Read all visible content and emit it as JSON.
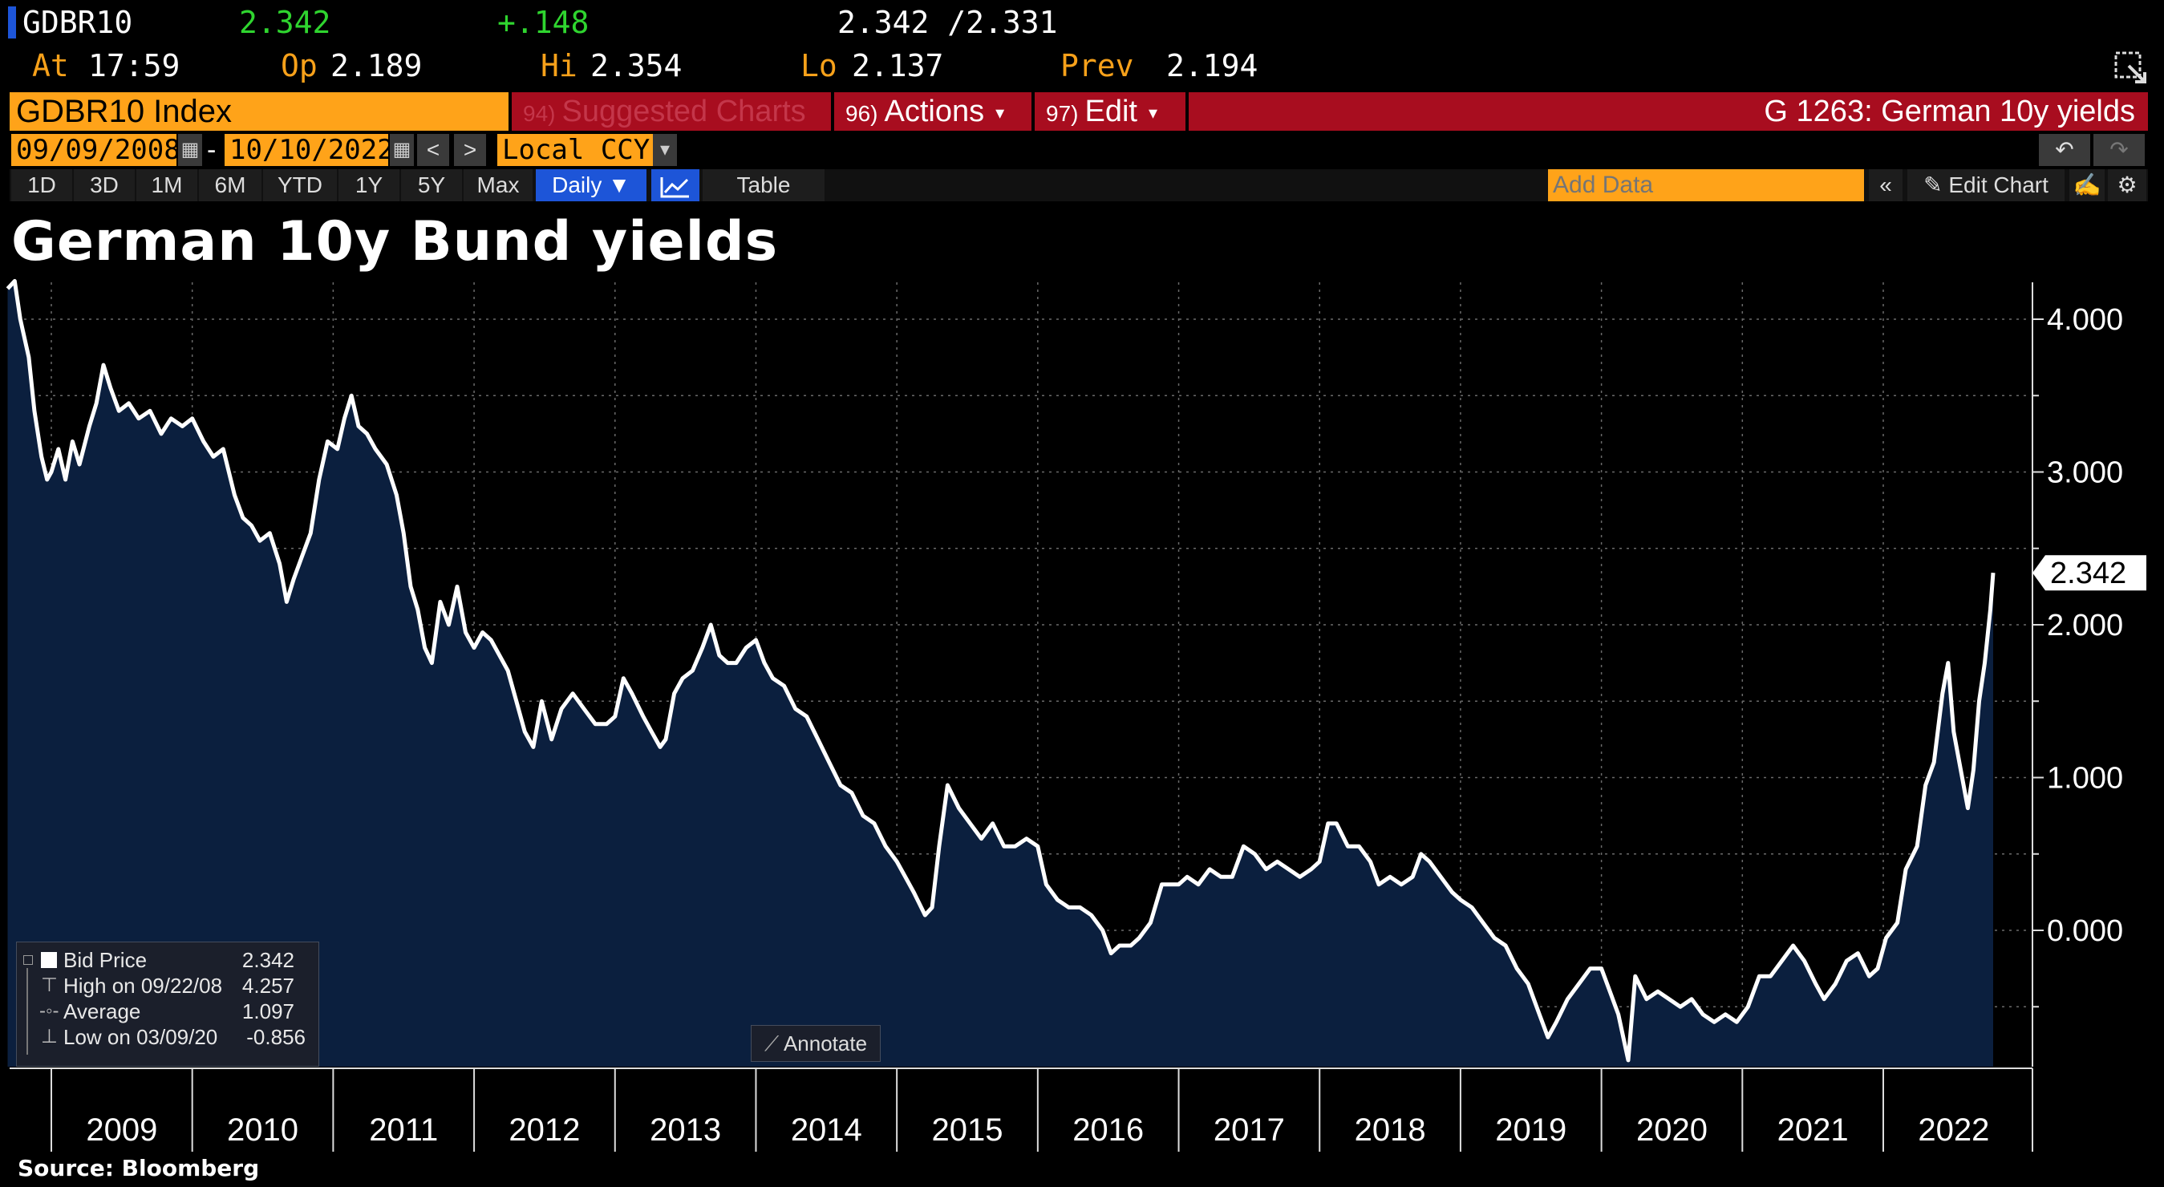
{
  "quote": {
    "ticker": "GDBR10",
    "last": "2.342",
    "change": "+.148",
    "bid_ask": "2.342 /2.331",
    "at_label": "At",
    "at_time": "17:59",
    "op_label": "Op",
    "op_value": "2.189",
    "hi_label": "Hi",
    "hi_value": "2.354",
    "lo_label": "Lo",
    "lo_value": "2.137",
    "prev_label": "Prev",
    "prev_value": "2.194"
  },
  "titlebar": {
    "index_name": "GDBR10 Index",
    "suggested_num": "94)",
    "suggested_label": "Suggested Charts",
    "actions_num": "96)",
    "actions_label": "Actions",
    "edit_num": "97)",
    "edit_label": "Edit",
    "chart_code": "G 1263: German 10y yields"
  },
  "controls": {
    "start_date": "09/09/2008",
    "dash": "-",
    "end_date": "10/10/2022",
    "prev_glyph": "<",
    "next_glyph": ">",
    "currency": "Local CCY",
    "ranges": [
      "1D",
      "3D",
      "1M",
      "6M",
      "YTD",
      "1Y",
      "5Y",
      "Max"
    ],
    "frequency": "Daily",
    "table_label": "Table",
    "add_data_placeholder": "Add Data",
    "edit_chart_label": "Edit Chart"
  },
  "legend": {
    "bid_label": "Bid Price",
    "bid_value": "2.342",
    "high_label": "High on 09/22/08",
    "high_value": "4.257",
    "avg_label": "Average",
    "avg_value": "1.097",
    "low_label": "Low on 03/09/20",
    "low_value": "-0.856"
  },
  "annotate_label": "Annotate",
  "source": "Source:  Bloomberg",
  "colors": {
    "orange": "#ffa319",
    "red": "#a80d1f",
    "green": "#2fd52f",
    "area_fill": "#0b1f3e",
    "line": "#ffffff"
  },
  "chart_data": {
    "type": "area",
    "title": "German 10y Bund yields",
    "xlabel": "",
    "ylabel": "",
    "x_ticks": [
      "2009",
      "2010",
      "2011",
      "2012",
      "2013",
      "2014",
      "2015",
      "2016",
      "2017",
      "2018",
      "2019",
      "2020",
      "2021",
      "2022"
    ],
    "y_ticks": [
      "4.000",
      "3.000",
      "2.000",
      "1.000",
      "0.000"
    ],
    "ylim": [
      -0.9,
      4.25
    ],
    "last_value_label": "2.342",
    "series": [
      {
        "name": "Bid Price",
        "points": [
          [
            2008.69,
            4.2
          ],
          [
            2008.74,
            4.25
          ],
          [
            2008.78,
            4.0
          ],
          [
            2008.84,
            3.75
          ],
          [
            2008.88,
            3.4
          ],
          [
            2008.93,
            3.1
          ],
          [
            2008.97,
            2.95
          ],
          [
            2009.0,
            3.0
          ],
          [
            2009.05,
            3.15
          ],
          [
            2009.1,
            2.95
          ],
          [
            2009.15,
            3.2
          ],
          [
            2009.2,
            3.05
          ],
          [
            2009.27,
            3.3
          ],
          [
            2009.32,
            3.45
          ],
          [
            2009.37,
            3.7
          ],
          [
            2009.42,
            3.55
          ],
          [
            2009.48,
            3.4
          ],
          [
            2009.55,
            3.45
          ],
          [
            2009.62,
            3.35
          ],
          [
            2009.7,
            3.4
          ],
          [
            2009.78,
            3.25
          ],
          [
            2009.85,
            3.35
          ],
          [
            2009.93,
            3.3
          ],
          [
            2010.0,
            3.35
          ],
          [
            2010.08,
            3.2
          ],
          [
            2010.15,
            3.1
          ],
          [
            2010.22,
            3.15
          ],
          [
            2010.3,
            2.85
          ],
          [
            2010.36,
            2.7
          ],
          [
            2010.42,
            2.65
          ],
          [
            2010.48,
            2.55
          ],
          [
            2010.55,
            2.6
          ],
          [
            2010.62,
            2.4
          ],
          [
            2010.67,
            2.15
          ],
          [
            2010.72,
            2.3
          ],
          [
            2010.78,
            2.45
          ],
          [
            2010.84,
            2.6
          ],
          [
            2010.9,
            2.95
          ],
          [
            2010.96,
            3.2
          ],
          [
            2011.03,
            3.15
          ],
          [
            2011.08,
            3.35
          ],
          [
            2011.13,
            3.5
          ],
          [
            2011.18,
            3.3
          ],
          [
            2011.24,
            3.25
          ],
          [
            2011.3,
            3.15
          ],
          [
            2011.38,
            3.05
          ],
          [
            2011.45,
            2.85
          ],
          [
            2011.5,
            2.6
          ],
          [
            2011.55,
            2.25
          ],
          [
            2011.6,
            2.1
          ],
          [
            2011.65,
            1.85
          ],
          [
            2011.7,
            1.75
          ],
          [
            2011.76,
            2.15
          ],
          [
            2011.82,
            2.0
          ],
          [
            2011.88,
            2.25
          ],
          [
            2011.94,
            1.95
          ],
          [
            2012.0,
            1.85
          ],
          [
            2012.06,
            1.95
          ],
          [
            2012.12,
            1.9
          ],
          [
            2012.18,
            1.8
          ],
          [
            2012.24,
            1.7
          ],
          [
            2012.3,
            1.5
          ],
          [
            2012.36,
            1.3
          ],
          [
            2012.42,
            1.2
          ],
          [
            2012.48,
            1.5
          ],
          [
            2012.55,
            1.25
          ],
          [
            2012.62,
            1.45
          ],
          [
            2012.7,
            1.55
          ],
          [
            2012.78,
            1.45
          ],
          [
            2012.86,
            1.35
          ],
          [
            2012.94,
            1.35
          ],
          [
            2013.0,
            1.4
          ],
          [
            2013.06,
            1.65
          ],
          [
            2013.12,
            1.55
          ],
          [
            2013.2,
            1.4
          ],
          [
            2013.26,
            1.3
          ],
          [
            2013.32,
            1.2
          ],
          [
            2013.36,
            1.25
          ],
          [
            2013.42,
            1.55
          ],
          [
            2013.48,
            1.65
          ],
          [
            2013.55,
            1.7
          ],
          [
            2013.62,
            1.85
          ],
          [
            2013.68,
            2.0
          ],
          [
            2013.74,
            1.8
          ],
          [
            2013.8,
            1.75
          ],
          [
            2013.86,
            1.75
          ],
          [
            2013.93,
            1.85
          ],
          [
            2014.0,
            1.9
          ],
          [
            2014.06,
            1.75
          ],
          [
            2014.12,
            1.65
          ],
          [
            2014.2,
            1.6
          ],
          [
            2014.28,
            1.45
          ],
          [
            2014.36,
            1.4
          ],
          [
            2014.44,
            1.25
          ],
          [
            2014.52,
            1.1
          ],
          [
            2014.6,
            0.95
          ],
          [
            2014.68,
            0.9
          ],
          [
            2014.76,
            0.75
          ],
          [
            2014.84,
            0.7
          ],
          [
            2014.92,
            0.55
          ],
          [
            2015.0,
            0.45
          ],
          [
            2015.06,
            0.35
          ],
          [
            2015.12,
            0.25
          ],
          [
            2015.2,
            0.1
          ],
          [
            2015.25,
            0.15
          ],
          [
            2015.3,
            0.55
          ],
          [
            2015.36,
            0.95
          ],
          [
            2015.44,
            0.8
          ],
          [
            2015.52,
            0.7
          ],
          [
            2015.6,
            0.6
          ],
          [
            2015.68,
            0.7
          ],
          [
            2015.76,
            0.55
          ],
          [
            2015.84,
            0.55
          ],
          [
            2015.92,
            0.6
          ],
          [
            2016.0,
            0.55
          ],
          [
            2016.06,
            0.3
          ],
          [
            2016.14,
            0.2
          ],
          [
            2016.22,
            0.15
          ],
          [
            2016.3,
            0.15
          ],
          [
            2016.38,
            0.1
          ],
          [
            2016.46,
            0.0
          ],
          [
            2016.52,
            -0.15
          ],
          [
            2016.58,
            -0.1
          ],
          [
            2016.66,
            -0.1
          ],
          [
            2016.72,
            -0.05
          ],
          [
            2016.8,
            0.05
          ],
          [
            2016.88,
            0.3
          ],
          [
            2016.94,
            0.3
          ],
          [
            2017.0,
            0.3
          ],
          [
            2017.06,
            0.35
          ],
          [
            2017.14,
            0.3
          ],
          [
            2017.22,
            0.4
          ],
          [
            2017.3,
            0.35
          ],
          [
            2017.38,
            0.35
          ],
          [
            2017.46,
            0.55
          ],
          [
            2017.54,
            0.5
          ],
          [
            2017.62,
            0.4
          ],
          [
            2017.7,
            0.45
          ],
          [
            2017.78,
            0.4
          ],
          [
            2017.86,
            0.35
          ],
          [
            2017.94,
            0.4
          ],
          [
            2018.0,
            0.45
          ],
          [
            2018.06,
            0.7
          ],
          [
            2018.12,
            0.7
          ],
          [
            2018.2,
            0.55
          ],
          [
            2018.28,
            0.55
          ],
          [
            2018.36,
            0.45
          ],
          [
            2018.42,
            0.3
          ],
          [
            2018.5,
            0.35
          ],
          [
            2018.58,
            0.3
          ],
          [
            2018.66,
            0.35
          ],
          [
            2018.72,
            0.5
          ],
          [
            2018.78,
            0.45
          ],
          [
            2018.86,
            0.35
          ],
          [
            2018.94,
            0.25
          ],
          [
            2019.0,
            0.2
          ],
          [
            2019.08,
            0.15
          ],
          [
            2019.16,
            0.05
          ],
          [
            2019.24,
            -0.05
          ],
          [
            2019.32,
            -0.1
          ],
          [
            2019.4,
            -0.25
          ],
          [
            2019.48,
            -0.35
          ],
          [
            2019.56,
            -0.55
          ],
          [
            2019.62,
            -0.7
          ],
          [
            2019.68,
            -0.6
          ],
          [
            2019.76,
            -0.45
          ],
          [
            2019.84,
            -0.35
          ],
          [
            2019.92,
            -0.25
          ],
          [
            2020.0,
            -0.25
          ],
          [
            2020.06,
            -0.4
          ],
          [
            2020.12,
            -0.55
          ],
          [
            2020.19,
            -0.85
          ],
          [
            2020.24,
            -0.3
          ],
          [
            2020.32,
            -0.45
          ],
          [
            2020.4,
            -0.4
          ],
          [
            2020.48,
            -0.45
          ],
          [
            2020.56,
            -0.5
          ],
          [
            2020.64,
            -0.45
          ],
          [
            2020.72,
            -0.55
          ],
          [
            2020.8,
            -0.6
          ],
          [
            2020.88,
            -0.55
          ],
          [
            2020.96,
            -0.6
          ],
          [
            2021.04,
            -0.5
          ],
          [
            2021.12,
            -0.3
          ],
          [
            2021.2,
            -0.3
          ],
          [
            2021.28,
            -0.2
          ],
          [
            2021.36,
            -0.1
          ],
          [
            2021.44,
            -0.2
          ],
          [
            2021.52,
            -0.35
          ],
          [
            2021.58,
            -0.45
          ],
          [
            2021.66,
            -0.35
          ],
          [
            2021.74,
            -0.2
          ],
          [
            2021.82,
            -0.15
          ],
          [
            2021.9,
            -0.3
          ],
          [
            2021.96,
            -0.25
          ],
          [
            2022.02,
            -0.05
          ],
          [
            2022.1,
            0.05
          ],
          [
            2022.16,
            0.4
          ],
          [
            2022.24,
            0.55
          ],
          [
            2022.3,
            0.95
          ],
          [
            2022.36,
            1.1
          ],
          [
            2022.42,
            1.55
          ],
          [
            2022.46,
            1.75
          ],
          [
            2022.5,
            1.3
          ],
          [
            2022.55,
            1.05
          ],
          [
            2022.6,
            0.8
          ],
          [
            2022.64,
            1.05
          ],
          [
            2022.68,
            1.5
          ],
          [
            2022.72,
            1.75
          ],
          [
            2022.76,
            2.1
          ],
          [
            2022.78,
            2.34
          ]
        ]
      }
    ]
  }
}
